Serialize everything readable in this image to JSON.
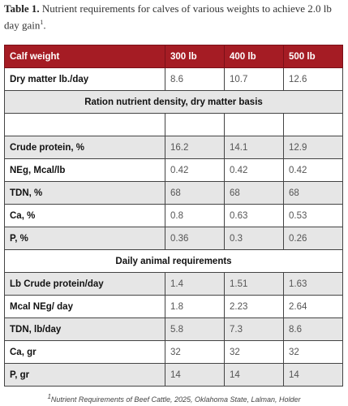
{
  "caption": {
    "label": "Table 1.",
    "text": "Nutrient requirements for calves of various weights to achieve 2.0 lb day gain",
    "sup": "1",
    "end": "."
  },
  "table": {
    "header": [
      "Calf weight",
      "300 lb",
      "400 lb",
      "500 lb"
    ],
    "dry_matter": [
      "Dry matter lb./day",
      "8.6",
      "10.7",
      "12.6"
    ],
    "section1": "Ration nutrient density, dry matter basis",
    "density_rows": [
      [
        "Crude protein, %",
        "16.2",
        "14.1",
        "12.9"
      ],
      [
        "NEg, Mcal/lb",
        "0.42",
        "0.42",
        "0.42"
      ],
      [
        "TDN, %",
        "68",
        "68",
        "68"
      ],
      [
        "Ca, %",
        "0.8",
        "0.63",
        "0.53"
      ],
      [
        "P, %",
        "0.36",
        "0.3",
        "0.26"
      ]
    ],
    "section2": "Daily animal requirements",
    "daily_rows": [
      [
        "Lb Crude protein/day",
        "1.4",
        "1.51",
        "1.63"
      ],
      [
        "Mcal NEg/ day",
        "1.8",
        "2.23",
        "2.64"
      ],
      [
        "TDN, lb/day",
        "5.8",
        "7.3",
        "8.6"
      ],
      [
        "Ca, gr",
        "32",
        "32",
        "32"
      ],
      [
        "P, gr",
        "14",
        "14",
        "14"
      ]
    ]
  },
  "footnote": {
    "sup": "1",
    "text": "Nutrient Requirements of Beef Cattle, 2025, Oklahoma State, Lalman, Holder"
  }
}
